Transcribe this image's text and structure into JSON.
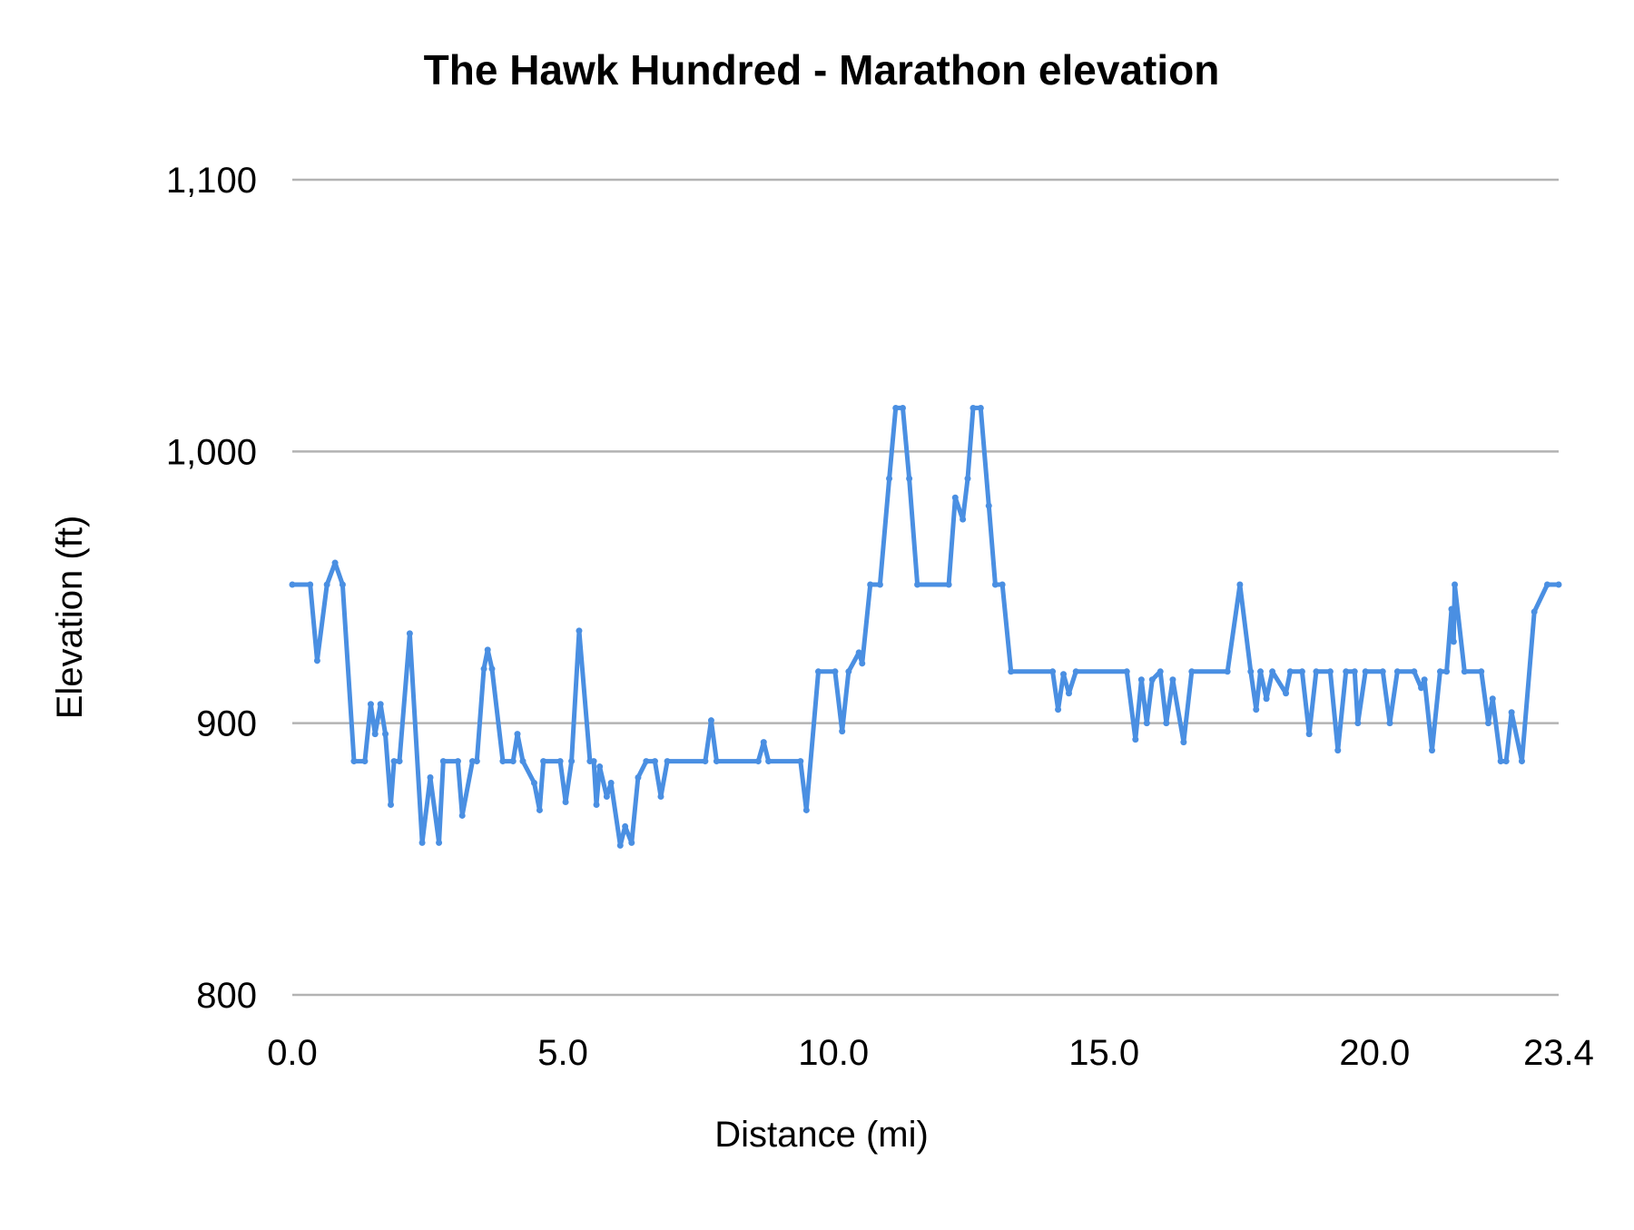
{
  "chart_data": {
    "type": "line",
    "title": "The Hawk Hundred - Marathon elevation",
    "xlabel": "Distance (mi)",
    "ylabel": "Elevation (ft)",
    "xlim": [
      0,
      23.4
    ],
    "ylim": [
      800,
      1100
    ],
    "x_ticks": [
      "0.0",
      "5.0",
      "10.0",
      "15.0",
      "20.0",
      "23.4"
    ],
    "x_tick_values": [
      0,
      5,
      10,
      15,
      20,
      23.4
    ],
    "y_ticks": [
      "800",
      "900",
      "1,000",
      "1,100"
    ],
    "y_tick_values": [
      800,
      900,
      1000,
      1100
    ],
    "grid": "horizontal",
    "legend": "none",
    "color": "#4a8fe2",
    "grid_color": "#b3b3b3",
    "series": [
      {
        "x": [
          0,
          0.33,
          0.46,
          0.64,
          0.79,
          0.93,
          1.14,
          1.34,
          1.45,
          1.53,
          1.63,
          1.72,
          1.82,
          1.88,
          1.98,
          2.17,
          2.4,
          2.55,
          2.71,
          2.79,
          3.06,
          3.14,
          3.33,
          3.41,
          3.54,
          3.61,
          3.69,
          3.89,
          4.08,
          4.16,
          4.26,
          4.47,
          4.57,
          4.64,
          4.95,
          5.05,
          5.16,
          5.3,
          5.5,
          5.57,
          5.62,
          5.68,
          5.81,
          5.89,
          6.06,
          6.15,
          6.27,
          6.39,
          6.54,
          6.7,
          6.81,
          6.93,
          7.63,
          7.74,
          7.84,
          8.61,
          8.71,
          8.8,
          9.39,
          9.5,
          9.72,
          10.03,
          10.16,
          10.28,
          10.47,
          10.53,
          10.68,
          10.86,
          11.03,
          11.15,
          11.28,
          11.4,
          11.55,
          12.13,
          12.25,
          12.39,
          12.48,
          12.58,
          12.72,
          12.87,
          12.99,
          13.12,
          13.28,
          14.05,
          14.15,
          14.25,
          14.35,
          14.48,
          15.42,
          15.58,
          15.69,
          15.79,
          15.89,
          16.04,
          16.15,
          16.27,
          16.47,
          16.62,
          17.28,
          17.51,
          17.71,
          17.81,
          17.89,
          18.0,
          18.11,
          18.36,
          18.44,
          18.66,
          18.79,
          18.92,
          19.18,
          19.32,
          19.47,
          19.63,
          19.69,
          19.83,
          20.15,
          20.28,
          20.42,
          20.73,
          20.86,
          20.92,
          21.06,
          21.21,
          21.33,
          21.42,
          21.46,
          21.48,
          21.66,
          21.97,
          22.1,
          22.18,
          22.33,
          22.43,
          22.53,
          22.72,
          22.95,
          23.19,
          23.4
        ],
        "y": [
          951,
          951,
          923,
          951,
          959,
          951,
          886,
          886,
          907,
          896,
          907,
          896,
          870,
          886,
          886,
          933,
          856,
          880,
          856,
          886,
          886,
          866,
          886,
          886,
          920,
          927,
          920,
          886,
          886,
          896,
          886,
          878,
          868,
          886,
          886,
          871,
          886,
          934,
          886,
          886,
          870,
          884,
          873,
          878,
          855,
          862,
          856,
          880,
          886,
          886,
          873,
          886,
          886,
          901,
          886,
          886,
          893,
          886,
          886,
          868,
          919,
          919,
          897,
          919,
          926,
          922,
          951,
          951,
          990,
          1016,
          1016,
          990,
          951,
          951,
          983,
          975,
          990,
          1016,
          1016,
          980,
          951,
          951,
          919,
          919,
          905,
          918,
          911,
          919,
          919,
          894,
          916,
          900,
          916,
          919,
          900,
          916,
          893,
          919,
          919,
          951,
          919,
          905,
          919,
          909,
          919,
          911,
          919,
          919,
          896,
          919,
          919,
          890,
          919,
          919,
          900,
          919,
          919,
          900,
          919,
          919,
          913,
          916,
          890,
          919,
          919,
          942,
          930,
          951,
          919,
          919,
          900,
          909,
          886,
          886,
          904,
          886,
          941,
          951,
          951
        ]
      }
    ]
  }
}
